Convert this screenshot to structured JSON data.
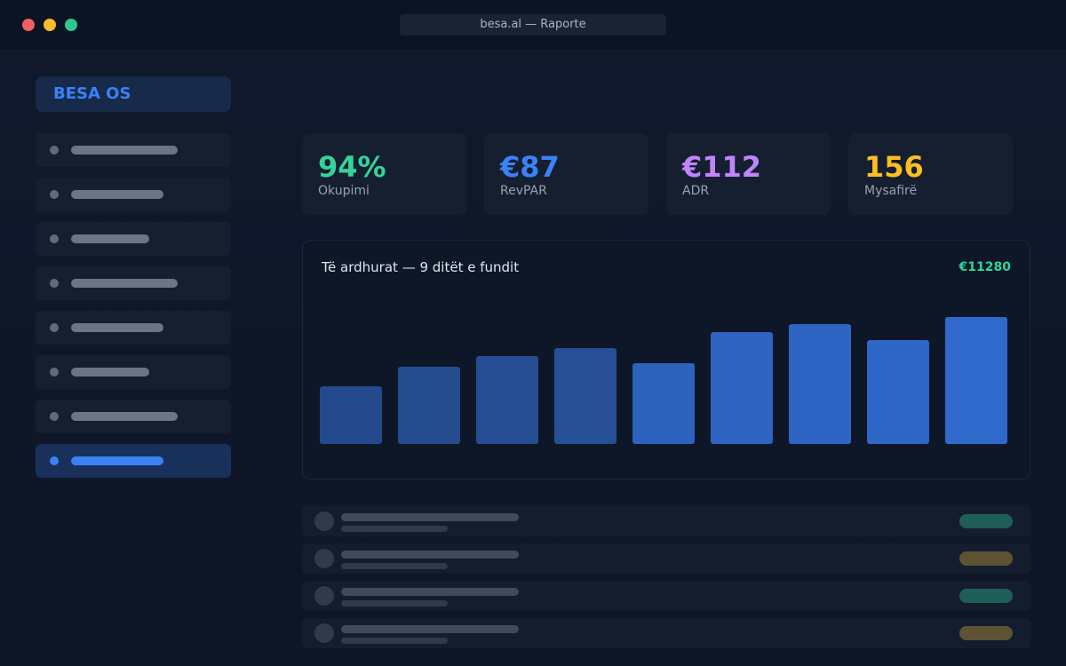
{
  "window": {
    "url_title": "besa.al — Raporte"
  },
  "sidebar": {
    "brand": "BESA OS",
    "items": [
      {
        "active": false
      },
      {
        "active": false
      },
      {
        "active": false
      },
      {
        "active": false
      },
      {
        "active": false
      },
      {
        "active": false
      },
      {
        "active": false
      },
      {
        "active": true
      }
    ]
  },
  "kpis": [
    {
      "value": "94%",
      "label": "Okupimi",
      "color": "#34d399"
    },
    {
      "value": "€87",
      "label": "RevPAR",
      "color": "#3b82f6"
    },
    {
      "value": "€112",
      "label": "ADR",
      "color": "#c084fc"
    },
    {
      "value": "156",
      "label": "Mysafirë",
      "color": "#fbbf24"
    }
  ],
  "revenue_panel": {
    "title": "Të ardhurat — 9 ditët e fundit",
    "total": "€11280"
  },
  "chart_data": {
    "type": "bar",
    "title": "Të ardhurat — 9 ditët e fundit",
    "categories": [
      "",
      "",
      "",
      "",
      "",
      "",
      "",
      "",
      ""
    ],
    "values": [
      65,
      87,
      99,
      108,
      91,
      126,
      135,
      117,
      143
    ],
    "ylim": [
      0,
      150
    ],
    "grid": false,
    "colors": {
      "bar_dark": "#2a56a3",
      "bar_light": "#3069cc"
    }
  },
  "list": {
    "rows": [
      {
        "status_color": "#1f5e58"
      },
      {
        "status_color": "#5d5333"
      },
      {
        "status_color": "#1f5e58"
      },
      {
        "status_color": "#5d5333"
      }
    ]
  }
}
